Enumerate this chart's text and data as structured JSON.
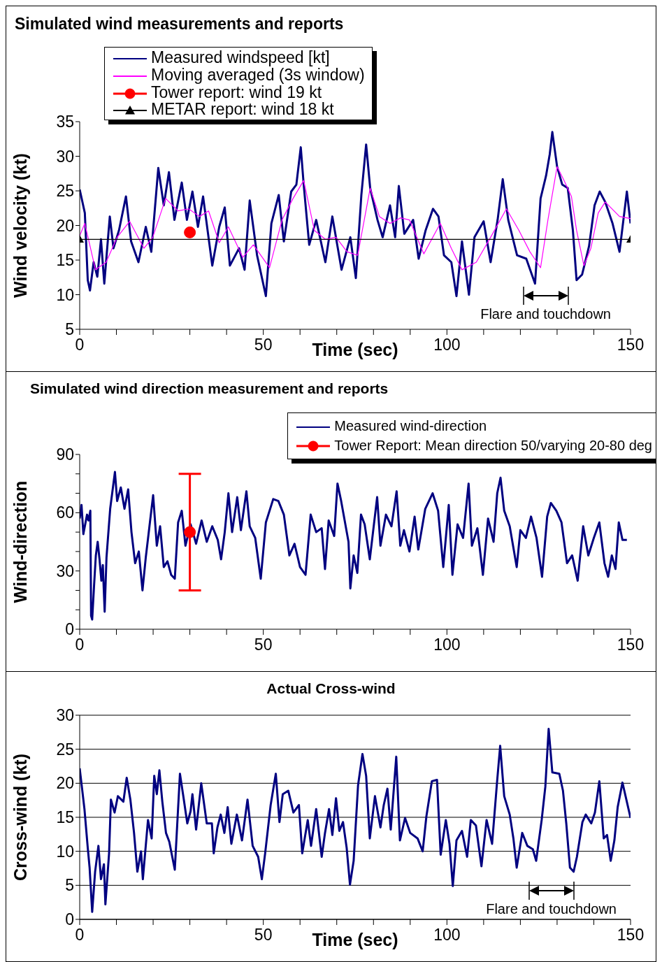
{
  "chart_data": [
    {
      "type": "line",
      "title": "Simulated wind measurements and reports",
      "xlabel": "Time (sec)",
      "ylabel": "Wind velocity (kt)",
      "xlim": [
        0,
        150
      ],
      "xticks": [
        0,
        {
          "value": 10,
          "label": null
        },
        {
          "value": 20,
          "label": null
        },
        {
          "value": 30,
          "label": null
        },
        {
          "value": 40,
          "label": null
        },
        50,
        {
          "value": 60,
          "label": null
        },
        {
          "value": 70,
          "label": null
        },
        {
          "value": 80,
          "label": null
        },
        {
          "value": 90,
          "label": null
        },
        100,
        {
          "value": 110,
          "label": null
        },
        {
          "value": 120,
          "label": null
        },
        {
          "value": 130,
          "label": null
        },
        {
          "value": 140,
          "label": null
        },
        150
      ],
      "ylim": [
        5,
        35
      ],
      "yticks": [
        5,
        10,
        15,
        20,
        25,
        30,
        35
      ],
      "grid": false,
      "legend": "top left",
      "annotations": [
        "Flare and touchdown"
      ],
      "series": [
        {
          "name": "Measured windspeed [kt]",
          "color": "#000080",
          "type": "line",
          "x": [
            0,
            1.4,
            2.2,
            2.8,
            3.8,
            4.8,
            5.8,
            6.7,
            8.2,
            9.2,
            10.7,
            12.6,
            14,
            16,
            18,
            19.5,
            21.4,
            22.9,
            24.3,
            25.8,
            27.8,
            29.2,
            30.7,
            32.2,
            33.6,
            36.1,
            38,
            39.5,
            40.9,
            43.4,
            44.9,
            46.3,
            48.3,
            50.7,
            52.2,
            54.2,
            55.6,
            57.6,
            59,
            60.2,
            61,
            62.5,
            64.4,
            66.9,
            68.8,
            71.3,
            73.7,
            75.2,
            76.7,
            78,
            79.1,
            81.1,
            82.5,
            84.5,
            85.9,
            86.9,
            88.4,
            90.8,
            92.3,
            94.2,
            96.2,
            97.7,
            99.2,
            101.2,
            102.6,
            104.1,
            106,
            107.5,
            110,
            111.9,
            113.8,
            115.2,
            116.7,
            119.1,
            121.6,
            124,
            125.5,
            127,
            128,
            128.7,
            130,
            131.4,
            132.9,
            134.3,
            135.3,
            136.8,
            138.7,
            140.2,
            141.6,
            143.1,
            145.1,
            147,
            149,
            150
          ],
          "values": [
            25.2,
            21.8,
            12.1,
            10.6,
            14.7,
            12.6,
            18,
            11.6,
            21.3,
            16.7,
            19.3,
            24.2,
            17.7,
            14.7,
            19.8,
            16.2,
            28.3,
            22.9,
            27.7,
            20.8,
            26.2,
            20.8,
            24.9,
            19.8,
            24.2,
            14.2,
            19.8,
            22.6,
            14.2,
            16.7,
            13.6,
            23.6,
            15.7,
            9.8,
            20.3,
            24.4,
            17.7,
            24.9,
            25.9,
            31.3,
            25.9,
            17.2,
            20.8,
            14.7,
            21.3,
            13.6,
            18.3,
            12.4,
            24.4,
            31.7,
            25.4,
            20.8,
            18.3,
            22.9,
            18.3,
            25.7,
            18.8,
            20.8,
            15.2,
            19.3,
            22.4,
            21.3,
            15.7,
            14.7,
            9.8,
            17.7,
            10,
            18.3,
            20.6,
            14.7,
            20.8,
            26.7,
            20.8,
            15.7,
            15.2,
            11.6,
            23.9,
            27.2,
            30.3,
            33.5,
            28.5,
            25.9,
            25.4,
            19.3,
            12.1,
            12.9,
            17,
            22.9,
            24.9,
            23.4,
            20.3,
            16.2,
            24.9,
            20.3
          ]
        },
        {
          "name": "Moving averaged (3s window)",
          "color": "#ff00ff",
          "type": "line",
          "x": [
            0,
            1.4,
            4.3,
            7.2,
            10.2,
            13.6,
            17.5,
            19.9,
            23.4,
            26.8,
            29.7,
            32.6,
            35.1,
            38,
            40.5,
            44.4,
            47.3,
            51.7,
            55.1,
            58.1,
            61,
            63.9,
            66.9,
            69.8,
            72.8,
            75.7,
            79.1,
            81.6,
            84.5,
            87.4,
            89.8,
            93.7,
            98.2,
            101.2,
            104.1,
            108,
            111.9,
            116.2,
            119.6,
            122.6,
            125.5,
            127.5,
            130,
            131.9,
            133.9,
            135.3,
            137.3,
            139.2,
            141.2,
            143.1,
            147,
            150
          ],
          "values": [
            18.5,
            20.3,
            13.6,
            14.7,
            18.3,
            20.6,
            16.7,
            18.3,
            23.9,
            22.1,
            22.4,
            21.3,
            22.1,
            17.5,
            19.8,
            15.4,
            17.2,
            13.9,
            20.8,
            23.9,
            26.5,
            19.3,
            18,
            18.3,
            16.2,
            15.7,
            25.4,
            21.3,
            20.3,
            21.1,
            20.8,
            15.9,
            20.3,
            16.7,
            13.6,
            14.7,
            18.3,
            22.4,
            19.3,
            16.2,
            13.9,
            20.8,
            28.5,
            26.5,
            24.2,
            19.3,
            14.2,
            16.7,
            21.8,
            23.4,
            21.3,
            21
          ]
        },
        {
          "name": "Tower report: wind 19 kt",
          "color": "#ff0000",
          "type": "scatter",
          "marker": "circle",
          "x": [
            30
          ],
          "values": [
            19
          ]
        },
        {
          "name": "METAR report: wind 18 kt",
          "color": "#000000",
          "type": "line",
          "marker": "triangle",
          "x": [
            0,
            150
          ],
          "values": [
            18,
            18
          ]
        }
      ]
    },
    {
      "type": "line",
      "title": "Simulated wind direction measurement and reports",
      "ylabel": "Wind-direction",
      "xlim": [
        0,
        150
      ],
      "xticks": [
        0,
        {
          "value": 10,
          "label": null
        },
        {
          "value": 20,
          "label": null
        },
        {
          "value": 30,
          "label": null
        },
        {
          "value": 40,
          "label": null
        },
        50,
        {
          "value": 60,
          "label": null
        },
        {
          "value": 70,
          "label": null
        },
        {
          "value": 80,
          "label": null
        },
        {
          "value": 90,
          "label": null
        },
        100,
        {
          "value": 110,
          "label": null
        },
        {
          "value": 120,
          "label": null
        },
        {
          "value": 130,
          "label": null
        },
        {
          "value": 140,
          "label": null
        },
        150
      ],
      "ylim": [
        0,
        90
      ],
      "yticks": [
        0,
        {
          "value": 10,
          "label": null
        },
        {
          "value": 20,
          "label": null
        },
        30,
        {
          "value": 40,
          "label": null
        },
        {
          "value": 50,
          "label": null
        },
        60,
        {
          "value": 70,
          "label": null
        },
        {
          "value": 80,
          "label": null
        },
        90
      ],
      "grid": false,
      "legend": "top right",
      "series": [
        {
          "name": "Measured wind-direction",
          "color": "#000080",
          "type": "line",
          "x": [
            0,
            0.5,
            1,
            2,
            2.4,
            2.9,
            3.1,
            3.4,
            3.9,
            4.4,
            4.9,
            5.4,
            5.9,
            6.3,
            6.8,
            7.3,
            8.3,
            9.6,
            10.2,
            11.2,
            12.2,
            13.2,
            14.1,
            15.1,
            16.1,
            17.1,
            18,
            19,
            20,
            21,
            21.9,
            22.9,
            23.9,
            24.9,
            25.9,
            26.8,
            27.8,
            28.8,
            30.2,
            31.7,
            33.2,
            34.6,
            36.1,
            37.6,
            38.5,
            39.5,
            40.5,
            41.5,
            42.9,
            43.9,
            45.4,
            46.3,
            47.8,
            49.3,
            50.7,
            52.7,
            54.1,
            55.6,
            57.1,
            58.5,
            60,
            61.5,
            62.9,
            64.4,
            65.9,
            66.8,
            67.8,
            69.3,
            70.2,
            71.2,
            73.2,
            73.7,
            74.6,
            75.6,
            76.6,
            77.6,
            79,
            81,
            81.9,
            83.4,
            84.9,
            86.3,
            87.3,
            88.3,
            89.8,
            91.2,
            92.2,
            94.1,
            96.1,
            97.6,
            99,
            100.5,
            101.5,
            102.9,
            104.4,
            105.9,
            106.8,
            108.3,
            109.8,
            111.2,
            112.7,
            113.7,
            114.6,
            115.6,
            117.1,
            119,
            120,
            121.5,
            122.9,
            124.4,
            125.9,
            127.3,
            128.3,
            129.8,
            131.2,
            132.7,
            134.1,
            135.6,
            137.1,
            138.5,
            140,
            141.5,
            142.9,
            143.9,
            144.9,
            145.9,
            146.8,
            147.8,
            149
          ],
          "values": [
            57,
            64,
            49,
            59,
            56,
            61,
            7,
            5,
            22,
            38,
            45,
            36,
            25,
            33,
            9,
            37,
            62,
            81,
            66,
            73,
            62,
            72,
            50,
            34,
            40,
            20,
            37,
            53,
            69,
            43,
            53,
            32,
            35,
            28,
            26,
            55,
            61,
            43,
            54,
            44,
            56,
            45,
            53,
            46,
            36,
            50,
            70,
            50,
            68,
            51,
            71,
            53,
            47,
            26,
            55,
            67,
            66,
            59,
            38,
            44,
            32,
            28,
            59,
            50,
            52,
            31,
            56,
            48,
            75,
            66,
            45,
            21,
            38,
            29,
            59,
            54,
            36,
            68,
            43,
            59,
            53,
            71,
            43,
            51,
            40,
            58,
            41,
            62,
            70,
            61,
            32,
            64,
            28,
            54,
            47,
            75,
            43,
            52,
            28,
            57,
            45,
            70,
            78,
            61,
            53,
            32,
            51,
            47,
            58,
            47,
            27,
            58,
            65,
            61,
            55,
            34,
            38,
            25,
            53,
            38,
            47,
            55,
            34,
            27,
            38,
            31,
            55,
            46,
            46
          ]
        },
        {
          "name": "Tower Report: Mean direction 50/varying 20-80 deg",
          "color": "#ff0000",
          "type": "scatter",
          "marker": "circle",
          "x": [
            30
          ],
          "values": [
            50
          ],
          "errors": [
            [
              20,
              80
            ]
          ]
        }
      ]
    },
    {
      "type": "line",
      "title": "Actual Cross-wind",
      "xlabel": "Time (sec)",
      "ylabel": "Cross-wind (kt)",
      "xlim": [
        0,
        150
      ],
      "xticks": [
        0,
        {
          "value": 10,
          "label": null
        },
        {
          "value": 20,
          "label": null
        },
        {
          "value": 30,
          "label": null
        },
        {
          "value": 40,
          "label": null
        },
        50,
        {
          "value": 60,
          "label": null
        },
        {
          "value": 70,
          "label": null
        },
        {
          "value": 80,
          "label": null
        },
        {
          "value": 90,
          "label": null
        },
        100,
        {
          "value": 110,
          "label": null
        },
        {
          "value": 120,
          "label": null
        },
        {
          "value": 130,
          "label": null
        },
        {
          "value": 140,
          "label": null
        },
        150
      ],
      "ylim": [
        0,
        30
      ],
      "yticks": [
        0,
        5,
        10,
        15,
        20,
        25,
        30
      ],
      "grid": "y",
      "annotations": [
        "Flare and touchdown"
      ],
      "series": [
        {
          "color": "#000080",
          "type": "line",
          "x": [
            0,
            1.3,
            2.2,
            2.7,
            3.4,
            4.2,
            5.1,
            5.8,
            6.6,
            7,
            8,
            8.5,
            9.5,
            10.4,
            11.9,
            12.8,
            13.8,
            14.8,
            15.7,
            16.7,
            17.2,
            18.6,
            19.6,
            20.3,
            21,
            21.7,
            22.5,
            23.5,
            24.4,
            25.9,
            27.3,
            28.3,
            29.3,
            30.2,
            30.7,
            31.7,
            33.1,
            34.6,
            36,
            36.5,
            37.5,
            38.4,
            39.4,
            40.3,
            41.3,
            42.8,
            44.2,
            45.7,
            47.1,
            48.6,
            49.6,
            50.5,
            52,
            53.4,
            54.4,
            55.3,
            56.8,
            58.2,
            59.7,
            60.6,
            62.1,
            63,
            64.4,
            65.9,
            66.8,
            67.9,
            68.8,
            69.8,
            70.7,
            71.7,
            72.7,
            73.6,
            74.6,
            75.8,
            77,
            78,
            79,
            80.4,
            81.9,
            82.8,
            83.8,
            84.7,
            86.2,
            87.2,
            88.6,
            90,
            92,
            93.4,
            94.4,
            95.9,
            97.3,
            98.3,
            99.7,
            100.7,
            101.6,
            102.6,
            104.1,
            105.5,
            106.5,
            107.9,
            109.4,
            110.8,
            112.3,
            113.7,
            114.5,
            115.6,
            117.1,
            118.1,
            119,
            120.5,
            121.9,
            123.4,
            124.3,
            125.8,
            126.8,
            127.7,
            128.7,
            130.6,
            131.6,
            132.5,
            133.5,
            134.5,
            135.4,
            136.9,
            137.8,
            139.3,
            140.3,
            141.5,
            142.7,
            143.6,
            144.6,
            145.6,
            146.5,
            147.8,
            150
          ],
          "values": [
            22.2,
            16.2,
            10.5,
            7.6,
            1.1,
            7,
            10.8,
            5.9,
            8.1,
            2.2,
            9.7,
            17.6,
            15.7,
            18.1,
            17.3,
            20.8,
            17.6,
            12.7,
            7,
            10,
            5.9,
            14.6,
            11.9,
            21.1,
            18.4,
            21.9,
            17.3,
            12.7,
            11.4,
            7.3,
            21.4,
            17.8,
            14.1,
            15.9,
            18.4,
            13.2,
            20,
            14.1,
            14.1,
            9.7,
            13.5,
            15.4,
            12.7,
            16.5,
            11.1,
            15.4,
            11.6,
            17.6,
            10.8,
            9.2,
            5.9,
            9.7,
            16.8,
            21.4,
            14.3,
            18.4,
            18.9,
            15.7,
            16.8,
            9.7,
            14.6,
            10.8,
            16.2,
            9.2,
            12.7,
            16.2,
            12.4,
            17.8,
            13,
            14.3,
            10.5,
            5.1,
            8.6,
            19.7,
            24.3,
            21.1,
            11.9,
            18.1,
            13.5,
            16.8,
            19.2,
            13.2,
            23.9,
            11.6,
            14.9,
            12.7,
            11.9,
            10,
            15.1,
            20.3,
            20.5,
            9.5,
            14.6,
            11.1,
            4.9,
            11.6,
            13,
            9.2,
            14.6,
            13.8,
            7.8,
            14.6,
            11.1,
            20.5,
            25.5,
            18.1,
            15.4,
            11.9,
            7.6,
            12.7,
            10.8,
            10.3,
            8.6,
            14.6,
            19.5,
            28,
            21.6,
            21.4,
            18.9,
            14.1,
            7.6,
            7,
            9.2,
            14.3,
            15.4,
            14.1,
            15.7,
            20.3,
            11.9,
            12.4,
            8.6,
            11.6,
            16.5,
            20.1,
            14.9
          ]
        }
      ]
    }
  ]
}
